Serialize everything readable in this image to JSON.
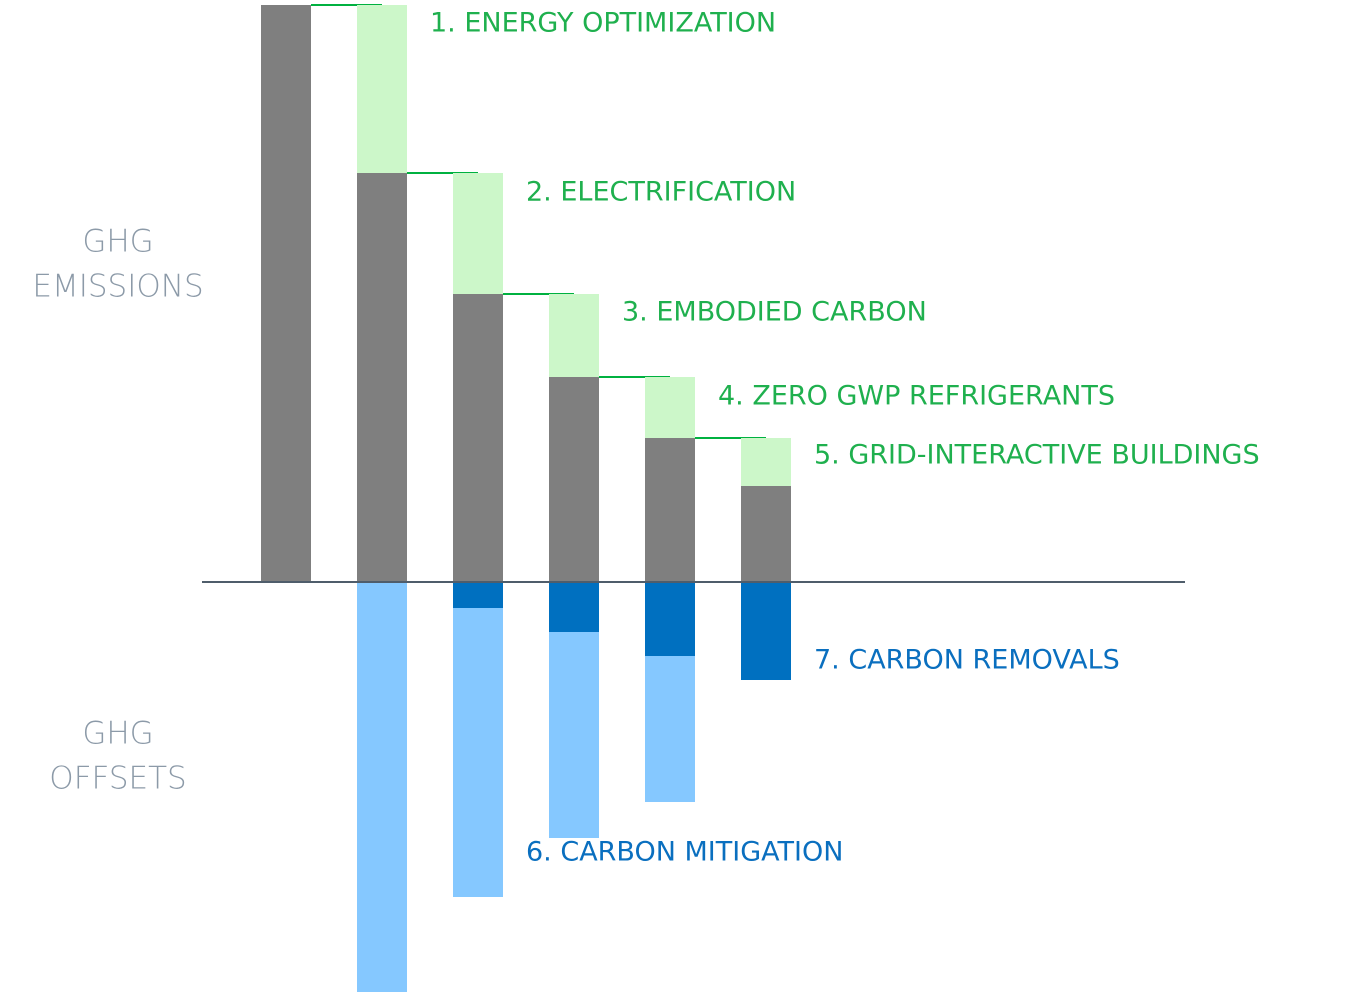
{
  "side_labels": {
    "emissions": [
      "GHG",
      "EMISSIONS"
    ],
    "offsets": [
      "GHG",
      "OFFSETS"
    ]
  },
  "steps": [
    "1. ENERGY OPTIMIZATION",
    "2. ELECTRIFICATION",
    "3. EMBODIED CARBON",
    "4. ZERO GWP REFRIGERANTS",
    "5. GRID-INTERACTIVE BUILDINGS",
    "6. CARBON MITIGATION",
    "7. CARBON REMOVALS"
  ]
}
